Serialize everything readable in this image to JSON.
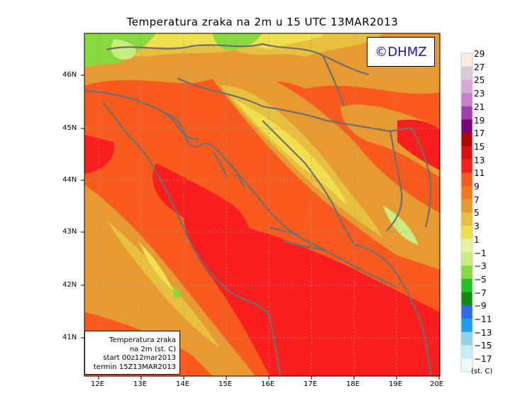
{
  "title": "Temperatura zraka na 2m u 15 UTC 13MAR2013",
  "brand": "©DHMZ",
  "info_box": [
    "Temperatura zraka",
    "na 2m (st. C)",
    "start 00z12mar2013",
    "termin 15Z13MAR2013"
  ],
  "longitude_ticks": [
    "12E",
    "13E",
    "14E",
    "15E",
    "16E",
    "17E",
    "18E",
    "19E",
    "20E"
  ],
  "latitude_ticks": [
    "46N",
    "45N",
    "44N",
    "43N",
    "42N",
    "41N"
  ],
  "colorbar": {
    "labels": [
      "29",
      "27",
      "25",
      "23",
      "21",
      "19",
      "17",
      "15",
      "13",
      "11",
      "9",
      "7",
      "5",
      "3",
      "1",
      "−1",
      "−3",
      "−5",
      "−7",
      "−9",
      "−11",
      "−13",
      "−15",
      "−17"
    ],
    "colors": [
      "#fbeee0",
      "#ddc8d8",
      "#d7a9d5",
      "#c880c8",
      "#a040a8",
      "#780078",
      "#b40000",
      "#d81010",
      "#fa1e1e",
      "#f95a1e",
      "#f27a1e",
      "#e89a32",
      "#e8c040",
      "#f0e050",
      "#eaf2a0",
      "#c8ec80",
      "#88d840",
      "#22c022",
      "#108a10",
      "#2e6ae8",
      "#1e9ef0",
      "#90d2e8",
      "#c6eef4",
      "#eafaff"
    ],
    "units": "(st. C)"
  },
  "map_colors": {
    "sea_warm": "#fa1e1e",
    "land_mild": "#f95a1e",
    "warm_orange": "#e89a32",
    "yellow": "#e8c040",
    "pale_yellow": "#f0e050",
    "green_light": "#c8ec80",
    "green": "#88d840",
    "border": "#6e6e6e",
    "grid": "#999999"
  }
}
